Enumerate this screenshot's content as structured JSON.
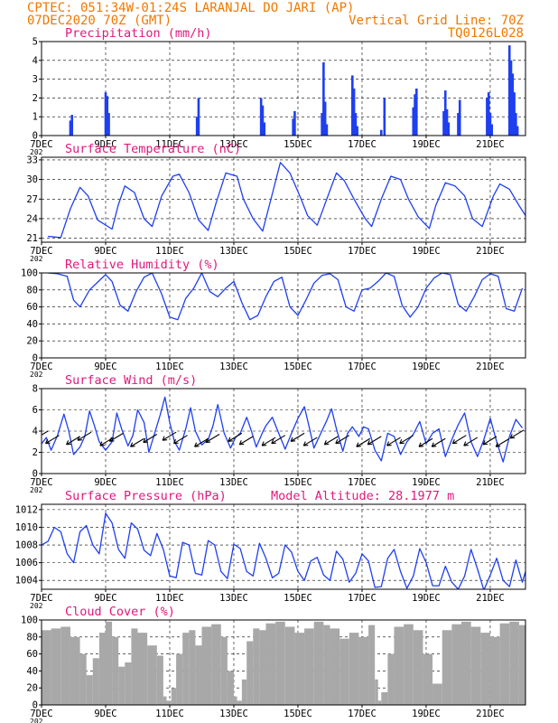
{
  "header": {
    "line1": "CPTEC:  051:34W-01:24S  LARANJAL DO JARI (AP)",
    "date": "07DEC2020 70Z (GMT)",
    "grid_note": "Vertical Grid Line: 70Z",
    "code": "TQ0126L028"
  },
  "colors": {
    "header": "#f07800",
    "title": "#e0197d",
    "series": "#1f3ff0",
    "cloud": "#a8a8a8",
    "grid": "#000000"
  },
  "x_axis": {
    "tick_labels": [
      "7DEC",
      "9DEC",
      "11DEC",
      "13DEC",
      "15DEC",
      "17DEC",
      "19DEC",
      "21DEC"
    ],
    "tick_days": [
      0,
      2,
      4,
      6,
      8,
      10,
      12,
      14
    ],
    "year_fragment": "202",
    "range_days": [
      0,
      15.1
    ]
  },
  "chart_data": [
    {
      "type": "bar",
      "title": "Precipitation (mm/h)",
      "ylim": [
        0,
        5
      ],
      "yticks": [
        0,
        1,
        2,
        3,
        4,
        5
      ],
      "grid": "dashed",
      "x_day": [
        0.9,
        0.95,
        2.0,
        2.05,
        2.1,
        4.85,
        4.9,
        6.85,
        6.9,
        6.95,
        7.85,
        7.9,
        8.75,
        8.8,
        8.85,
        8.9,
        9.7,
        9.75,
        9.8,
        9.85,
        10.6,
        10.7,
        11.6,
        11.65,
        11.7,
        12.55,
        12.6,
        12.65,
        12.7,
        13.0,
        13.05,
        13.9,
        13.95,
        14.0,
        14.05,
        14.6,
        14.65,
        14.7,
        14.75,
        14.8,
        14.85
      ],
      "values": [
        0.8,
        1.1,
        2.3,
        2.1,
        1.2,
        1.0,
        2.0,
        2.0,
        1.6,
        0.7,
        0.9,
        1.3,
        1.2,
        3.9,
        1.8,
        0.6,
        3.2,
        2.5,
        1.2,
        0.5,
        0.3,
        2.0,
        1.5,
        2.2,
        2.5,
        1.3,
        2.4,
        1.4,
        0.7,
        1.2,
        1.9,
        2.0,
        2.3,
        1.2,
        0.6,
        4.8,
        4.0,
        3.3,
        2.3,
        1.2,
        0.5
      ]
    },
    {
      "type": "line",
      "title": "Surface Temperature (nC)",
      "ylim": [
        20.4,
        33.4
      ],
      "yticks": [
        21,
        24,
        27,
        30,
        33
      ],
      "grid": "dashed",
      "series": [
        {
          "x_day": [
            0.2,
            0.4,
            0.6,
            0.9,
            1.2,
            1.45,
            1.75,
            2.2,
            2.4,
            2.6,
            2.9,
            3.2,
            3.45,
            3.75,
            4.1,
            4.3,
            4.6,
            4.9,
            5.2,
            5.45,
            5.75,
            6.1,
            6.3,
            6.6,
            6.9,
            7.2,
            7.45,
            7.75,
            8.1,
            8.3,
            8.6,
            8.9,
            9.2,
            9.45,
            9.75,
            10.1,
            10.3,
            10.6,
            10.9,
            11.2,
            11.45,
            11.75,
            12.1,
            12.3,
            12.6,
            12.9,
            13.2,
            13.45,
            13.75,
            14.1,
            14.3,
            14.6,
            14.9,
            15.1
          ],
          "values": [
            21.3,
            21.2,
            21.1,
            25.5,
            28.8,
            27.5,
            23.8,
            22.4,
            26.2,
            29.0,
            28.0,
            24.0,
            22.8,
            27.5,
            30.5,
            30.8,
            28.0,
            23.8,
            22.2,
            26.5,
            31.0,
            30.5,
            27.0,
            24.0,
            22.1,
            27.8,
            32.6,
            31.0,
            27.0,
            24.5,
            23.0,
            27.0,
            31.0,
            29.8,
            27.0,
            24.0,
            22.8,
            27.0,
            30.5,
            30.0,
            27.0,
            24.3,
            22.5,
            26.0,
            29.5,
            29.0,
            27.5,
            24.0,
            22.8,
            27.5,
            29.3,
            28.5,
            26.0,
            24.5
          ]
        }
      ]
    },
    {
      "type": "line",
      "title": "Relative Humidity (%)",
      "ylim": [
        0,
        100
      ],
      "yticks": [
        0,
        20,
        40,
        60,
        80,
        100
      ],
      "grid": "dashed",
      "series": [
        {
          "x_day": [
            0.2,
            0.5,
            0.8,
            1.0,
            1.2,
            1.5,
            1.8,
            2.0,
            2.2,
            2.45,
            2.7,
            2.95,
            3.2,
            3.45,
            3.75,
            4.0,
            4.25,
            4.5,
            4.75,
            5.0,
            5.25,
            5.5,
            5.75,
            6.0,
            6.25,
            6.5,
            6.75,
            7.0,
            7.25,
            7.5,
            7.75,
            8.0,
            8.25,
            8.5,
            8.75,
            9.0,
            9.25,
            9.5,
            9.75,
            10.0,
            10.25,
            10.5,
            10.75,
            11.0,
            11.25,
            11.5,
            11.75,
            12.0,
            12.25,
            12.5,
            12.75,
            13.0,
            13.25,
            13.5,
            13.75,
            14.0,
            14.25,
            14.5,
            14.75,
            15.0
          ],
          "values": [
            100,
            99,
            96,
            68,
            60,
            80,
            91,
            98,
            90,
            62,
            55,
            78,
            95,
            100,
            75,
            48,
            45,
            70,
            82,
            100,
            78,
            72,
            82,
            90,
            65,
            45,
            50,
            72,
            90,
            95,
            60,
            50,
            68,
            88,
            97,
            99,
            92,
            60,
            55,
            80,
            82,
            90,
            100,
            96,
            62,
            48,
            60,
            82,
            94,
            100,
            98,
            63,
            55,
            72,
            92,
            99,
            96,
            58,
            55,
            82
          ]
        }
      ]
    },
    {
      "type": "line",
      "title": "Surface Wind (m/s)",
      "ylim": [
        0,
        8
      ],
      "yticks": [
        0,
        2,
        4,
        6,
        8
      ],
      "grid": "dashed",
      "series": [
        {
          "x_day": [
            0.0,
            0.15,
            0.3,
            0.5,
            0.7,
            0.85,
            1.0,
            1.2,
            1.35,
            1.5,
            1.65,
            1.8,
            2.0,
            2.2,
            2.35,
            2.5,
            2.7,
            2.85,
            3.0,
            3.2,
            3.35,
            3.5,
            3.7,
            3.85,
            4.0,
            4.15,
            4.3,
            4.5,
            4.65,
            4.8,
            5.0,
            5.2,
            5.35,
            5.5,
            5.7,
            5.9,
            6.05,
            6.2,
            6.4,
            6.55,
            6.7,
            6.9,
            7.0,
            7.2,
            7.4,
            7.6,
            7.8,
            8.0,
            8.2,
            8.35,
            8.5,
            8.7,
            8.9,
            9.05,
            9.2,
            9.4,
            9.55,
            9.7,
            9.9,
            10.05,
            10.2,
            10.4,
            10.6,
            10.8,
            11.0,
            11.2,
            11.4,
            11.6,
            11.8,
            12.0,
            12.2,
            12.4,
            12.6,
            12.8,
            13.0,
            13.2,
            13.4,
            13.6,
            13.8,
            14.0,
            14.2,
            14.4,
            14.6,
            14.8,
            15.0
          ],
          "values": [
            2.8,
            3.4,
            2.2,
            3.6,
            5.6,
            4.0,
            1.8,
            2.5,
            3.5,
            5.9,
            4.5,
            3.0,
            2.2,
            3.0,
            5.7,
            4.2,
            2.6,
            3.6,
            6.0,
            4.8,
            2.0,
            3.5,
            5.5,
            7.2,
            4.8,
            3.0,
            2.2,
            4.2,
            6.2,
            4.0,
            2.7,
            3.2,
            4.5,
            6.5,
            3.8,
            2.4,
            3.4,
            3.8,
            5.3,
            4.0,
            2.5,
            3.9,
            4.5,
            5.3,
            3.8,
            2.3,
            3.8,
            5.2,
            6.3,
            4.4,
            2.4,
            3.7,
            5.0,
            6.1,
            4.2,
            2.1,
            3.8,
            4.4,
            3.5,
            4.4,
            4.2,
            2.2,
            1.2,
            3.8,
            3.5,
            1.8,
            3.0,
            3.7,
            4.9,
            2.8,
            3.8,
            4.2,
            1.6,
            3.2,
            4.6,
            5.7,
            3.0,
            1.6,
            3.2,
            5.2,
            3.0,
            1.1,
            3.5,
            5.1,
            4.3
          ]
        }
      ],
      "wind_arrows_x_day": [
        0.2,
        0.55,
        1.2,
        1.55,
        2.25,
        2.55,
        3.2,
        3.6,
        4.2,
        4.55,
        5.2,
        5.55,
        6.25,
        6.6,
        7.3,
        7.6,
        8.2,
        8.6,
        9.25,
        9.6,
        10.25,
        10.6,
        11.2,
        11.6,
        12.2,
        12.6,
        13.25,
        13.6,
        14.2,
        14.6,
        15.05
      ],
      "wind_arrows_speed": [
        4.0,
        3.6,
        3.5,
        3.9,
        3.4,
        3.8,
        3.3,
        3.7,
        3.9,
        3.6,
        3.3,
        3.7,
        3.8,
        3.5,
        3.4,
        3.6,
        3.8,
        3.4,
        3.5,
        3.6,
        3.3,
        3.5,
        3.4,
        3.6,
        3.3,
        3.3,
        3.6,
        3.4,
        3.5,
        3.3,
        4.1
      ]
    },
    {
      "type": "line",
      "title": "Surface Pressure (hPa)",
      "annotation": "Model Altitude: 28.1977 m",
      "ylim": [
        1003.0,
        1012.6
      ],
      "yticks": [
        1004,
        1006,
        1008,
        1010,
        1012
      ],
      "grid": "dashed",
      "series": [
        {
          "x_day": [
            0.0,
            0.2,
            0.4,
            0.6,
            0.8,
            1.0,
            1.2,
            1.4,
            1.6,
            1.8,
            2.0,
            2.2,
            2.4,
            2.6,
            2.8,
            3.0,
            3.2,
            3.4,
            3.6,
            3.8,
            4.0,
            4.2,
            4.4,
            4.6,
            4.8,
            5.0,
            5.2,
            5.4,
            5.6,
            5.8,
            6.0,
            6.2,
            6.4,
            6.6,
            6.8,
            7.0,
            7.2,
            7.4,
            7.6,
            7.8,
            8.0,
            8.2,
            8.4,
            8.6,
            8.8,
            9.0,
            9.2,
            9.4,
            9.6,
            9.8,
            10.0,
            10.2,
            10.4,
            10.6,
            10.8,
            11.0,
            11.2,
            11.4,
            11.6,
            11.8,
            12.0,
            12.2,
            12.4,
            12.6,
            12.8,
            13.0,
            13.2,
            13.4,
            13.6,
            13.8,
            14.0,
            14.2,
            14.4,
            14.6,
            14.8,
            15.0,
            15.1
          ],
          "values": [
            1008,
            1008.4,
            1010.0,
            1009.5,
            1007.0,
            1006.0,
            1009.5,
            1010.2,
            1008.0,
            1007.0,
            1011.6,
            1010.5,
            1007.5,
            1006.5,
            1010.5,
            1009.8,
            1007.4,
            1006.8,
            1009.3,
            1007.5,
            1004.5,
            1004.3,
            1008.3,
            1008.0,
            1004.8,
            1004.6,
            1008.5,
            1008.0,
            1005.0,
            1004.2,
            1008.1,
            1007.6,
            1005.0,
            1004.5,
            1008.2,
            1006.5,
            1004.3,
            1004.8,
            1008.0,
            1007.2,
            1005.0,
            1004.0,
            1006.2,
            1006.6,
            1004.6,
            1004.0,
            1007.3,
            1006.4,
            1003.8,
            1004.8,
            1007.0,
            1006.2,
            1003.2,
            1003.3,
            1006.5,
            1007.5,
            1005.0,
            1003.1,
            1004.5,
            1007.6,
            1006.0,
            1003.4,
            1003.4,
            1005.6,
            1003.8,
            1003.0,
            1004.5,
            1007.5,
            1005.3,
            1002.9,
            1004.6,
            1006.5,
            1004.0,
            1003.3,
            1006.3,
            1003.8,
            1005.0
          ]
        }
      ]
    },
    {
      "type": "area",
      "title": "Cloud Cover (%)",
      "ylim": [
        0,
        100
      ],
      "yticks": [
        0,
        20,
        40,
        60,
        80,
        100
      ],
      "grid": "dashed",
      "series": [
        {
          "x_day": [
            0.0,
            0.3,
            0.6,
            0.9,
            1.2,
            1.4,
            1.6,
            1.8,
            2.0,
            2.2,
            2.4,
            2.6,
            2.8,
            3.0,
            3.3,
            3.6,
            3.8,
            3.9,
            4.05,
            4.2,
            4.4,
            4.6,
            4.8,
            5.0,
            5.3,
            5.6,
            5.8,
            6.0,
            6.1,
            6.25,
            6.4,
            6.6,
            6.8,
            7.0,
            7.3,
            7.6,
            7.9,
            8.2,
            8.5,
            8.8,
            9.0,
            9.3,
            9.6,
            9.9,
            10.2,
            10.4,
            10.5,
            10.6,
            10.8,
            11.0,
            11.3,
            11.6,
            11.9,
            12.2,
            12.5,
            12.8,
            13.1,
            13.4,
            13.7,
            14.0,
            14.3,
            14.6,
            14.9,
            15.1
          ],
          "values": [
            88,
            90,
            92,
            80,
            60,
            35,
            55,
            85,
            98,
            80,
            45,
            50,
            90,
            85,
            70,
            58,
            10,
            5,
            20,
            60,
            85,
            88,
            70,
            92,
            95,
            80,
            40,
            10,
            5,
            30,
            75,
            90,
            88,
            96,
            98,
            92,
            85,
            90,
            98,
            94,
            90,
            78,
            85,
            80,
            94,
            30,
            5,
            15,
            60,
            92,
            95,
            88,
            60,
            25,
            88,
            95,
            98,
            92,
            85,
            80,
            96,
            98,
            94,
            90
          ]
        }
      ]
    }
  ]
}
